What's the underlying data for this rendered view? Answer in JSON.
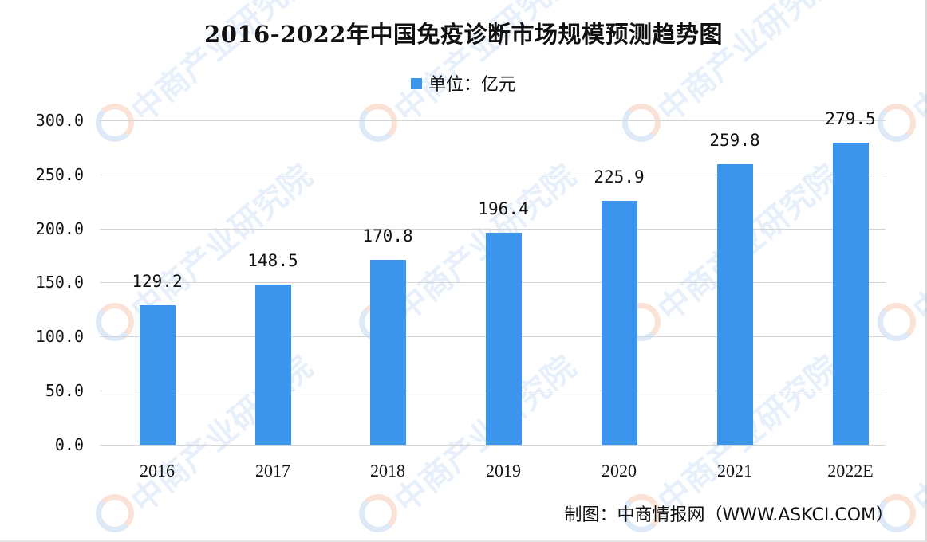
{
  "title": "2016-2022年中国免疫诊断市场规模预测趋势图",
  "legend": {
    "label": "单位：亿元",
    "color": "#3c95ec"
  },
  "source": "制图：中商情报网（WWW.ASKCI.COM）",
  "watermark": "中商产业研究院",
  "yaxis": {
    "ticks": [
      "0.0",
      "50.0",
      "100.0",
      "150.0",
      "200.0",
      "250.0",
      "300.0"
    ]
  },
  "bars": [
    {
      "year": "2016",
      "value": "129.2"
    },
    {
      "year": "2017",
      "value": "148.5"
    },
    {
      "year": "2018",
      "value": "170.8"
    },
    {
      "year": "2019",
      "value": "196.4"
    },
    {
      "year": "2020",
      "value": "225.9"
    },
    {
      "year": "2021",
      "value": "259.8"
    },
    {
      "year": "2022E",
      "value": "279.5"
    }
  ],
  "chart_data": {
    "type": "bar",
    "title": "2016-2022年中国免疫诊断市场规模预测趋势图",
    "categories": [
      "2016",
      "2017",
      "2018",
      "2019",
      "2020",
      "2021",
      "2022E"
    ],
    "series": [
      {
        "name": "单位：亿元",
        "values": [
          129.2,
          148.5,
          170.8,
          196.4,
          225.9,
          259.8,
          279.5
        ]
      }
    ],
    "xlabel": "",
    "ylabel": "亿元",
    "ylim": [
      0,
      300
    ],
    "yticks": [
      0,
      50,
      100,
      150,
      200,
      250,
      300
    ],
    "grid": true,
    "legend_position": "top",
    "data_labels": true,
    "bar_color": "#3c95ec",
    "source": "制图：中商情报网（WWW.ASKCI.COM）"
  }
}
